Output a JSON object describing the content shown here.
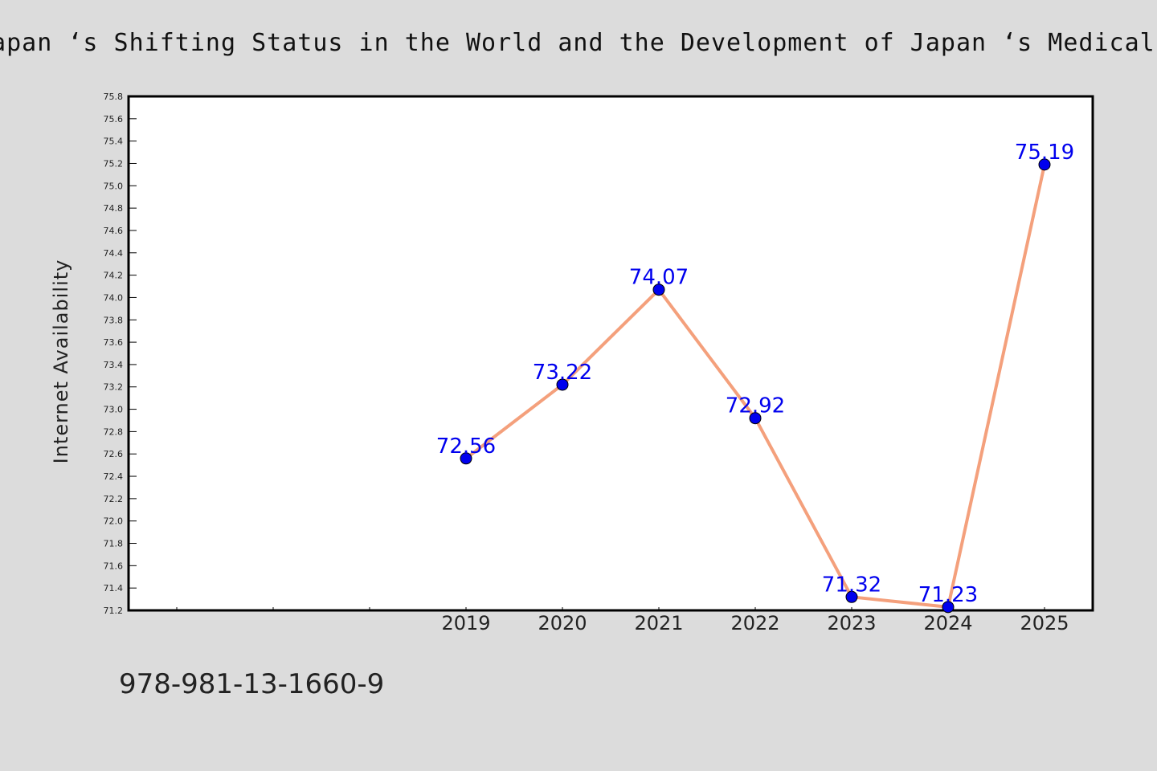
{
  "title": "Japan ‘s Shifting Status in the World and the Development of Japan ‘s Medical Insurance",
  "footer": "978-981-13-1660-9",
  "colors": {
    "background": "#dcdcdc",
    "plot_background": "#ffffff",
    "line": "#f4a07c",
    "marker": "#0000ee",
    "data_label": "#0000ee"
  },
  "chart_data": {
    "type": "line",
    "ylabel": "Internet Availability",
    "xlabel": "",
    "ylim": [
      71.2,
      75.8
    ],
    "yticks": [
      "71.2",
      "71.4",
      "71.6",
      "71.8",
      "72.0",
      "72.2",
      "72.4",
      "72.6",
      "72.8",
      "73.0",
      "73.2",
      "73.4",
      "73.6",
      "73.8",
      "74.0",
      "74.2",
      "74.4",
      "74.6",
      "74.8",
      "75.0",
      "75.2",
      "75.4",
      "75.6",
      "75.8"
    ],
    "x": [
      "2019",
      "2020",
      "2021",
      "2022",
      "2023",
      "2024",
      "2025"
    ],
    "series": [
      {
        "values": [
          72.56,
          73.22,
          74.07,
          72.92,
          71.32,
          71.23,
          75.19
        ],
        "labels": [
          "72.56",
          "73.22",
          "74.07",
          "72.92",
          "71.32",
          "71.23",
          "75.19"
        ]
      }
    ],
    "grid": false,
    "legend": "none"
  }
}
